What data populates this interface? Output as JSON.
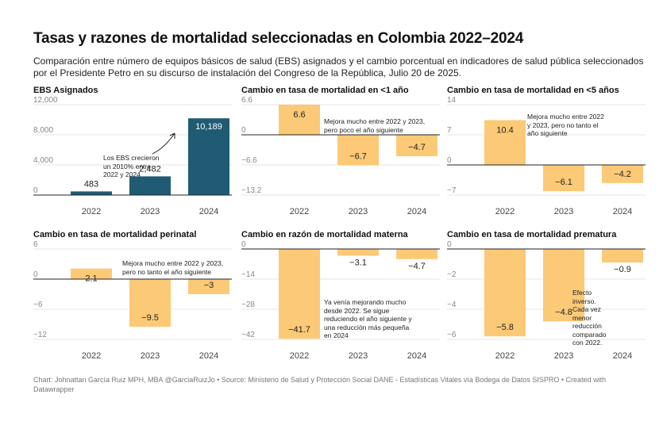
{
  "title": "Tasas y razones de mortalidad seleccionadas en Colombia 2022–2024",
  "subtitle": "Comparación entre número de equipos básicos de salud (EBS) asignados y el cambio porcentual en indicadores de salud pública seleccionados por el Presidente Petro en su discurso de instalación del Congreso de la República, Julio 20 de 2025.",
  "footer": "Chart: Johnattan García Ruiz MPH, MBA @GarciaRuizJo • Source: Ministerio de Salud y Protección Social DANE - Estadísticas Vitales vía Bodega de Datos SISPRO • Created with Datawrapper",
  "colors": {
    "ebs_bar": "#1f5b73",
    "change_bar": "#fcc977",
    "axis": "#222222",
    "grid": "#e6e6e6",
    "tick": "#888888"
  },
  "chart_data": [
    {
      "type": "bar",
      "title": "EBS Asignados",
      "categories": [
        "2022",
        "2023",
        "2024"
      ],
      "values": [
        483,
        2482,
        10189
      ],
      "labels": [
        "483",
        "2,482",
        "10,189"
      ],
      "ylim": [
        0,
        12000
      ],
      "yticks": [
        0,
        4000,
        8000,
        12000
      ],
      "ytick_labels": [
        "0",
        "4,000",
        "8,000",
        "12,000"
      ],
      "annotation": "Los EBS crecieron un 2010% entre 2022 y 2024"
    },
    {
      "type": "bar",
      "title": "Cambio en tasa de mortalidad en <1 año",
      "categories": [
        "2022",
        "2023",
        "2024"
      ],
      "values": [
        6.6,
        -6.7,
        -4.7
      ],
      "labels": [
        "6.6",
        "−6.7",
        "−4.7"
      ],
      "ylim": [
        -13.2,
        6.6
      ],
      "yticks": [
        6.6,
        0,
        -6.6,
        -13.2
      ],
      "ytick_labels": [
        "6.6",
        "0",
        "−6.6",
        "−13.2"
      ],
      "annotation": "Mejora mucho entre 2022 y 2023, pero poco el año siguiente"
    },
    {
      "type": "bar",
      "title": "Cambio en tasa de mortalidad en <5 años",
      "categories": [
        "2022",
        "2023",
        "2024"
      ],
      "values": [
        10.4,
        -6.1,
        -4.2
      ],
      "labels": [
        "10.4",
        "−6.1",
        "−4.2"
      ],
      "ylim": [
        -7,
        14
      ],
      "yticks": [
        14,
        7,
        0,
        -7
      ],
      "ytick_labels": [
        "14",
        "7",
        "0",
        "−7"
      ],
      "annotation": "Mejora mucho entre 2022 y 2023, pero no tanto el año siguiente"
    },
    {
      "type": "bar",
      "title": "Cambio en tasa de mortalidad perinatal",
      "categories": [
        "2022",
        "2023",
        "2024"
      ],
      "values": [
        2.1,
        -9.5,
        -3
      ],
      "labels": [
        "2.1",
        "−9.5",
        "−3"
      ],
      "ylim": [
        -12,
        6
      ],
      "yticks": [
        6,
        0,
        -6,
        -12
      ],
      "ytick_labels": [
        "6",
        "0",
        "−6",
        "−12"
      ],
      "annotation": "Mejora mucho entre 2022 y 2023, pero no tanto el año siguiente"
    },
    {
      "type": "bar",
      "title": "Cambio en razón de mortalidad materna",
      "categories": [
        "2022",
        "2023",
        "2024"
      ],
      "values": [
        -41.7,
        -3.1,
        -4.7
      ],
      "labels": [
        "−41.7",
        "−3.1",
        "−4.7"
      ],
      "ylim": [
        -42,
        0
      ],
      "yticks": [
        0,
        -14,
        -28,
        -42
      ],
      "ytick_labels": [
        "0",
        "−14",
        "−28",
        "−42"
      ],
      "annotation": "Ya venía mejorando mucho desde 2022. Se sigue reduciendo el año siguiente y una reducción más pequeña en 2024"
    },
    {
      "type": "bar",
      "title": "Cambio en tasa de mortalidad prematura",
      "categories": [
        "2022",
        "2023",
        "2024"
      ],
      "values": [
        -5.8,
        -4.8,
        -0.9
      ],
      "labels": [
        "−5.8",
        "−4.8",
        "−0.9"
      ],
      "ylim": [
        -6,
        0
      ],
      "yticks": [
        0,
        -2,
        -4,
        -6
      ],
      "ytick_labels": [
        "0",
        "−2",
        "−4",
        "−6"
      ],
      "annotation": "Efecto inverso. Cada vez menor reducción comparado con 2022."
    }
  ]
}
